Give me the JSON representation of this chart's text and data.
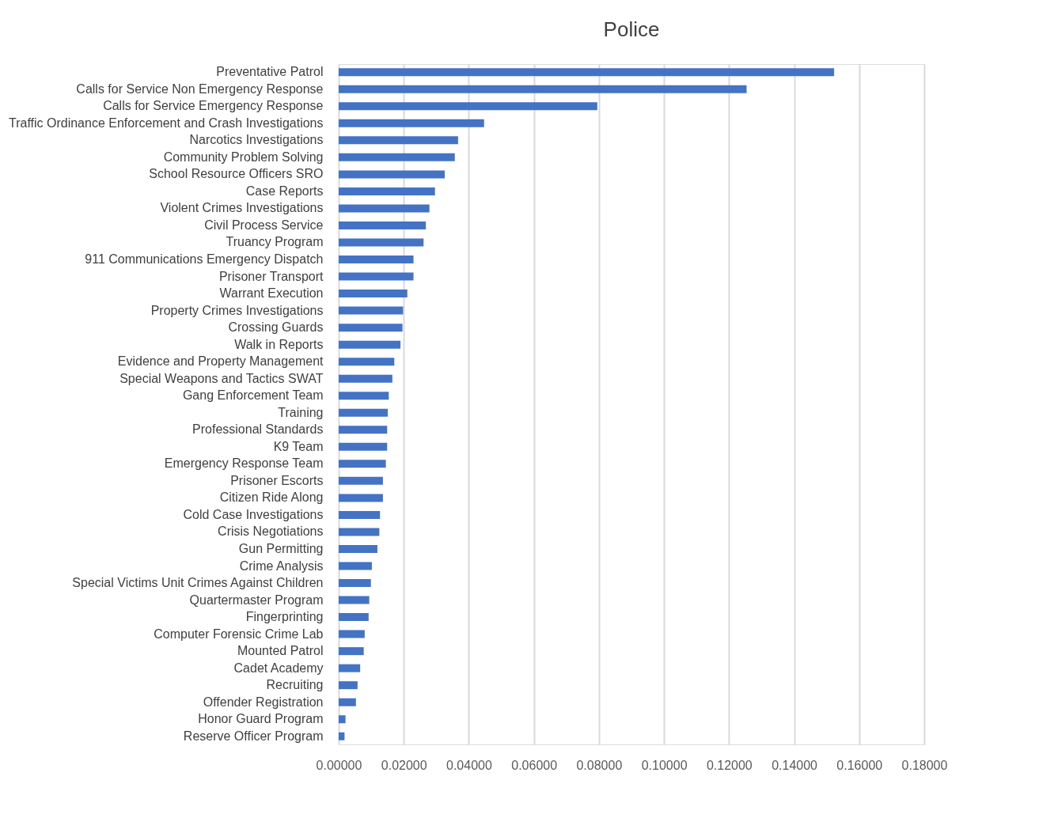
{
  "chart_data": {
    "type": "bar",
    "orientation": "horizontal",
    "title": "Police",
    "categories": [
      "Preventative Patrol",
      "Calls for Service   Non Emergency Response",
      "Calls for Service   Emergency Response",
      "Traffic Ordinance Enforcement and Crash Investigations",
      "Narcotics Investigations",
      "Community Problem Solving",
      "School Resource Officers  SRO",
      "Case Reports",
      "Violent Crimes Investigations",
      "Civil Process Service",
      "Truancy Program",
      "911 Communications   Emergency Dispatch",
      "Prisoner Transport",
      "Warrant Execution",
      "Property Crimes Investigations",
      "Crossing Guards",
      "Walk in Reports",
      "Evidence and Property Management",
      "Special Weapons and Tactics SWAT",
      "Gang Enforcement Team",
      "Training",
      "Professional Standards",
      "K9 Team",
      "Emergency Response Team",
      "Prisoner Escorts",
      "Citizen Ride Along",
      "Cold Case Investigations",
      "Crisis Negotiations",
      "Gun Permitting",
      "Crime Analysis",
      "Special Victims Unit   Crimes Against Children",
      "Quartermaster Program",
      "Fingerprinting",
      "Computer Forensic Crime Lab",
      "Mounted Patrol",
      "Cadet Academy",
      "Recruiting",
      "Offender Registration",
      "Honor Guard Program",
      "Reserve Officer Program"
    ],
    "values": [
      0.1523,
      0.1254,
      0.0795,
      0.0447,
      0.0367,
      0.0357,
      0.0326,
      0.0296,
      0.0279,
      0.0268,
      0.0261,
      0.023,
      0.023,
      0.0211,
      0.0198,
      0.0196,
      0.019,
      0.0171,
      0.0165,
      0.0154,
      0.0151,
      0.0149,
      0.0149,
      0.0145,
      0.0136,
      0.0136,
      0.0127,
      0.0125,
      0.0119,
      0.0102,
      0.0099,
      0.0094,
      0.0092,
      0.008,
      0.0077,
      0.0066,
      0.0058,
      0.0053,
      0.0021,
      0.0018
    ],
    "color": "#4472c4",
    "xlim": [
      0,
      0.18
    ],
    "xticks": [
      {
        "value": 0,
        "label": "0.00000"
      },
      {
        "value": 0.02,
        "label": "0.02000"
      },
      {
        "value": 0.04,
        "label": "0.04000"
      },
      {
        "value": 0.06,
        "label": "0.06000"
      },
      {
        "value": 0.08,
        "label": "0.08000"
      },
      {
        "value": 0.1,
        "label": "0.10000"
      },
      {
        "value": 0.12,
        "label": "0.12000"
      },
      {
        "value": 0.14,
        "label": "0.14000"
      },
      {
        "value": 0.16,
        "label": "0.16000"
      },
      {
        "value": 0.18,
        "label": "0.18000"
      }
    ],
    "grid": "x"
  }
}
